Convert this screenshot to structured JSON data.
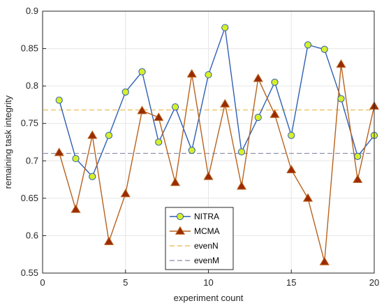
{
  "chart_data": {
    "type": "line",
    "xlabel": "experiment count",
    "ylabel": "remaining task integrity",
    "xlim": [
      0,
      20
    ],
    "ylim": [
      0.55,
      0.9
    ],
    "xticks": [
      0,
      5,
      10,
      15,
      20
    ],
    "yticks": [
      0.55,
      0.6,
      0.65,
      0.7,
      0.75,
      0.8,
      0.85,
      0.9
    ],
    "grid": true,
    "legend_position": "bottom-center",
    "series": [
      {
        "name": "NITRA",
        "color": "#2f5fb3",
        "marker": "circle",
        "marker_fill": "#d7ef2a",
        "x": [
          1,
          2,
          3,
          4,
          5,
          6,
          7,
          8,
          9,
          10,
          11,
          12,
          13,
          14,
          15,
          16,
          17,
          18,
          19,
          20
        ],
        "values": [
          0.781,
          0.703,
          0.679,
          0.734,
          0.792,
          0.819,
          0.725,
          0.772,
          0.714,
          0.815,
          0.878,
          0.712,
          0.758,
          0.805,
          0.734,
          0.855,
          0.849,
          0.783,
          0.706,
          0.734
        ]
      },
      {
        "name": "MCMA",
        "color": "#b8621d",
        "marker": "triangle",
        "marker_fill": "#9c2a00",
        "x": [
          1,
          2,
          3,
          4,
          5,
          6,
          7,
          8,
          9,
          10,
          11,
          12,
          13,
          14,
          15,
          16,
          17,
          18,
          19,
          20
        ],
        "values": [
          0.711,
          0.635,
          0.734,
          0.592,
          0.656,
          0.767,
          0.758,
          0.671,
          0.816,
          0.679,
          0.776,
          0.666,
          0.81,
          0.762,
          0.688,
          0.65,
          0.565,
          0.829,
          0.675,
          0.773
        ]
      },
      {
        "name": "evenN",
        "color": "#e8b84a",
        "dashed": true,
        "values": [
          0.768
        ]
      },
      {
        "name": "evenM",
        "color": "#8a8aa6",
        "dashed": true,
        "values": [
          0.71
        ]
      }
    ]
  }
}
